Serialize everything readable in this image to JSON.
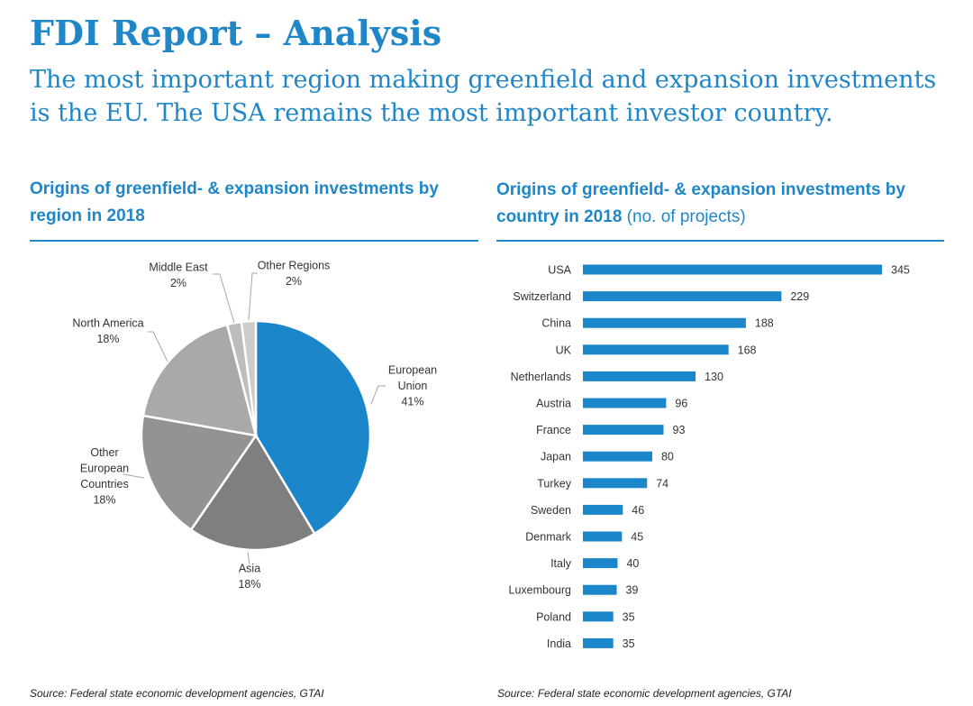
{
  "header": {
    "title": "FDI Report – Analysis",
    "subtitle": "The most important region making greenfield and expansion investments is the EU. The USA remains the most important investor country."
  },
  "left_panel": {
    "heading": "Origins of greenfield- & expansion investments by region in 2018",
    "source": "Source:  Federal state economic development agencies, GTAI"
  },
  "right_panel": {
    "heading_bold": "Origins of greenfield- & expansion investments by country in 2018",
    "heading_normal": "(no. of projects)",
    "source": "Source:  Federal state economic development agencies, GTAI"
  },
  "colors": {
    "accent": "#1f86c8",
    "bar": "#1b86c9",
    "eu": "#1b86c9",
    "asia": "#7f7f7f",
    "other_europe": "#939393",
    "north_america": "#a9a9a9",
    "middle_east": "#bdbdbd",
    "other_regions": "#cccccc"
  },
  "chart_data": [
    {
      "type": "pie",
      "title": "Origins of greenfield- & expansion investments by region in 2018",
      "slices": [
        {
          "label": [
            "European",
            "Union"
          ],
          "value": 41,
          "value_label": "41%",
          "color": "#1b86c9"
        },
        {
          "label": [
            "Asia"
          ],
          "value": 18,
          "value_label": "18%",
          "color": "#7f7f7f"
        },
        {
          "label": [
            "Other",
            "European",
            "Countries"
          ],
          "value": 18,
          "value_label": "18%",
          "color": "#939393"
        },
        {
          "label": [
            "North America"
          ],
          "value": 18,
          "value_label": "18%",
          "color": "#a9a9a9"
        },
        {
          "label": [
            "Middle East"
          ],
          "value": 2,
          "value_label": "2%",
          "color": "#bdbdbd"
        },
        {
          "label": [
            "Other Regions"
          ],
          "value": 2,
          "value_label": "2%",
          "color": "#cccccc"
        }
      ]
    },
    {
      "type": "bar",
      "orientation": "horizontal",
      "title": "Origins of greenfield- & expansion investments by country in 2018 (no. of projects)",
      "categories": [
        "USA",
        "Switzerland",
        "China",
        "UK",
        "Netherlands",
        "Austria",
        "France",
        "Japan",
        "Turkey",
        "Sweden",
        "Denmark",
        "Italy",
        "Luxembourg",
        "Poland",
        "India"
      ],
      "values": [
        345,
        229,
        188,
        168,
        130,
        96,
        93,
        80,
        74,
        46,
        45,
        40,
        39,
        35,
        35
      ],
      "xlim": [
        0,
        345
      ]
    }
  ]
}
